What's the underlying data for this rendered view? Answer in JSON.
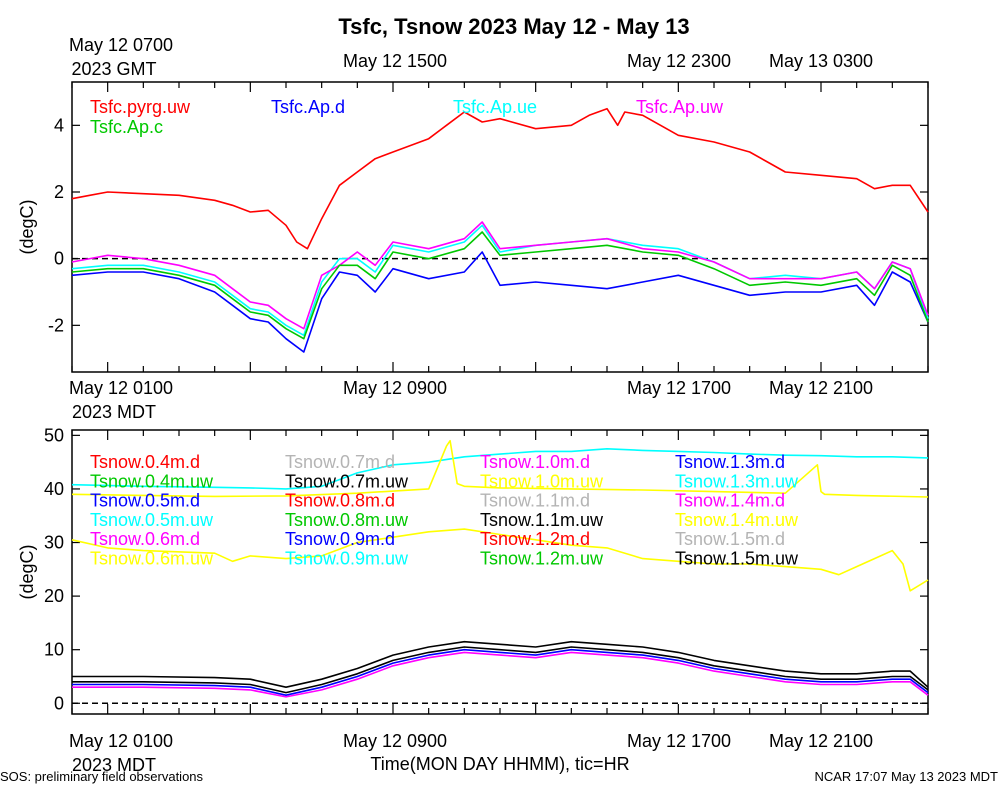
{
  "title": "Tsfc, Tsnow 2023 May 12 - May 13",
  "top_axis": {
    "labels": [
      "May 12 0700",
      "May 12 1500",
      "May 12 2300",
      "May 13 0300"
    ],
    "sublabel": "2023 GMT"
  },
  "bottom_axis": {
    "labels": [
      "May 12 0100",
      "May 12 0900",
      "May 12 1700",
      "May 12 2100"
    ],
    "sublabel": "2023 MDT"
  },
  "xlabel": "Time(MON DAY HHMM), tic=HR",
  "footer": {
    "left": "SOS: preliminary field observations",
    "right": "NCAR 17:07 May 13 2023 MDT"
  },
  "chart_data": [
    {
      "type": "line",
      "ylabel": "(degC)",
      "ylim": [
        -3.4,
        5.3
      ],
      "yticks": [
        -2,
        0,
        2,
        4
      ],
      "xlim": [
        0,
        24
      ],
      "x_unit": "hours after May 12 0000 MDT",
      "zero_line": true,
      "series": [
        {
          "name": "Tsfc.pyrg.uw",
          "color": "#ff0000",
          "x": [
            0,
            0.5,
            1,
            2,
            3,
            4,
            4.5,
            5,
            5.5,
            6,
            6.3,
            6.6,
            7,
            7.5,
            8,
            8.5,
            9,
            10,
            10.5,
            11,
            11.5,
            12,
            13,
            14,
            14.5,
            15,
            15.3,
            15.5,
            16,
            17,
            18,
            19,
            19.5,
            20,
            21,
            22,
            22.5,
            23,
            23.5,
            24
          ],
          "y": [
            1.8,
            1.9,
            2.0,
            1.95,
            1.9,
            1.75,
            1.6,
            1.4,
            1.45,
            1.0,
            0.5,
            0.3,
            1.2,
            2.2,
            2.6,
            3.0,
            3.2,
            3.6,
            4.0,
            4.4,
            4.1,
            4.2,
            3.9,
            4.0,
            4.3,
            4.5,
            4.0,
            4.4,
            4.3,
            3.7,
            3.5,
            3.2,
            2.9,
            2.6,
            2.5,
            2.4,
            2.1,
            2.2,
            2.2,
            1.4
          ]
        },
        {
          "name": "Tsfc.Ap.d",
          "color": "#0000ff",
          "x": [
            0,
            1,
            2,
            3,
            4,
            4.5,
            5,
            5.5,
            6,
            6.5,
            7,
            7.5,
            8,
            8.5,
            9,
            10,
            11,
            11.5,
            12,
            13,
            14,
            15,
            16,
            17,
            18,
            19,
            20,
            21,
            22,
            22.5,
            23,
            23.5,
            24
          ],
          "y": [
            -0.5,
            -0.4,
            -0.4,
            -0.6,
            -1.0,
            -1.4,
            -1.8,
            -1.9,
            -2.4,
            -2.8,
            -1.2,
            -0.4,
            -0.5,
            -1.0,
            -0.3,
            -0.6,
            -0.4,
            0.2,
            -0.8,
            -0.7,
            -0.8,
            -0.9,
            -0.7,
            -0.5,
            -0.8,
            -1.1,
            -1.0,
            -1.0,
            -0.8,
            -1.4,
            -0.4,
            -0.7,
            -1.9
          ]
        },
        {
          "name": "Tsfc.Ap.ue",
          "color": "#00ffff",
          "x": [
            0,
            1,
            2,
            3,
            4,
            4.5,
            5,
            5.5,
            6,
            6.5,
            7,
            7.5,
            8,
            8.5,
            9,
            10,
            11,
            11.5,
            12,
            13,
            14,
            15,
            16,
            17,
            18,
            19,
            20,
            21,
            22,
            22.5,
            23,
            23.5,
            24
          ],
          "y": [
            -0.3,
            -0.2,
            -0.2,
            -0.4,
            -0.7,
            -1.1,
            -1.5,
            -1.6,
            -2.0,
            -2.3,
            -0.7,
            0.0,
            0.0,
            -0.4,
            0.4,
            0.2,
            0.5,
            1.0,
            0.2,
            0.4,
            0.5,
            0.6,
            0.4,
            0.3,
            -0.1,
            -0.6,
            -0.5,
            -0.6,
            -0.4,
            -0.9,
            -0.1,
            -0.3,
            -1.8
          ]
        },
        {
          "name": "Tsfc.Ap.uw",
          "color": "#ff00ff",
          "x": [
            0,
            1,
            2,
            3,
            4,
            4.5,
            5,
            5.5,
            6,
            6.5,
            7,
            7.5,
            8,
            8.5,
            9,
            10,
            11,
            11.5,
            12,
            13,
            14,
            15,
            16,
            17,
            18,
            19,
            20,
            21,
            22,
            22.5,
            23,
            23.5,
            24
          ],
          "y": [
            -0.1,
            0.1,
            0.0,
            -0.2,
            -0.5,
            -0.9,
            -1.3,
            -1.4,
            -1.8,
            -2.1,
            -0.5,
            -0.2,
            0.2,
            -0.2,
            0.5,
            0.3,
            0.6,
            1.1,
            0.3,
            0.4,
            0.5,
            0.6,
            0.3,
            0.2,
            -0.1,
            -0.6,
            -0.6,
            -0.6,
            -0.4,
            -0.9,
            -0.1,
            -0.3,
            -1.7
          ]
        },
        {
          "name": "Tsfc.Ap.c",
          "color": "#00c800",
          "x": [
            0,
            1,
            2,
            3,
            4,
            4.5,
            5,
            5.5,
            6,
            6.5,
            7,
            7.5,
            8,
            8.5,
            9,
            10,
            11,
            11.5,
            12,
            13,
            14,
            15,
            16,
            17,
            18,
            19,
            20,
            21,
            22,
            22.5,
            23,
            23.5,
            24
          ],
          "y": [
            -0.4,
            -0.3,
            -0.3,
            -0.5,
            -0.8,
            -1.2,
            -1.6,
            -1.7,
            -2.1,
            -2.4,
            -0.9,
            -0.2,
            -0.2,
            -0.6,
            0.2,
            0.0,
            0.3,
            0.8,
            0.1,
            0.2,
            0.3,
            0.4,
            0.2,
            0.1,
            -0.3,
            -0.8,
            -0.7,
            -0.8,
            -0.6,
            -1.1,
            -0.2,
            -0.5,
            -1.9
          ]
        }
      ]
    },
    {
      "type": "line",
      "ylabel": "(degC)",
      "ylim": [
        -2,
        51
      ],
      "yticks": [
        0,
        10,
        20,
        30,
        40,
        50
      ],
      "xlim": [
        0,
        24
      ],
      "x_unit": "hours after May 12 0000 MDT",
      "zero_line": true,
      "series": [
        {
          "name": "Tsnow.0.4m.d",
          "color": "#ff0000"
        },
        {
          "name": "Tsnow.0.4m.uw",
          "color": "#00c800"
        },
        {
          "name": "Tsnow.0.5m.d",
          "color": "#0000ff"
        },
        {
          "name": "Tsnow.0.5m.uw",
          "color": "#00ffff"
        },
        {
          "name": "Tsnow.0.6m.d",
          "color": "#ff00ff"
        },
        {
          "name": "Tsnow.0.6m.uw",
          "color": "#ffff00",
          "x": [
            0,
            1,
            2,
            4,
            4.5,
            5,
            6,
            7,
            8,
            9,
            10,
            11,
            12,
            13,
            14,
            15,
            16,
            17,
            18,
            19,
            20,
            21,
            21.5,
            22,
            22.5,
            23,
            23.3,
            23.5,
            24
          ],
          "y": [
            30.5,
            29.0,
            28.5,
            28.0,
            26.5,
            27.5,
            27.0,
            27.5,
            30.0,
            31.0,
            32.0,
            32.5,
            31.5,
            30.5,
            29.5,
            29.0,
            27.0,
            26.5,
            26.0,
            26.0,
            25.5,
            25.0,
            24.0,
            25.5,
            27.0,
            28.5,
            26.0,
            21.0,
            23.0
          ]
        },
        {
          "name": "Tsnow.0.7m.d",
          "color": "#b4b4b4"
        },
        {
          "name": "Tsnow.0.7m.uw",
          "color": "#000000"
        },
        {
          "name": "Tsnow.0.8m.d",
          "color": "#ff0000"
        },
        {
          "name": "Tsnow.0.8m.uw",
          "color": "#00c800"
        },
        {
          "name": "Tsnow.0.9m.d",
          "color": "#0000ff"
        },
        {
          "name": "Tsnow.0.9m.uw",
          "color": "#00ffff",
          "x": [
            0,
            2,
            4,
            5,
            6,
            7,
            8,
            9,
            10,
            11,
            12,
            13,
            14,
            15,
            16,
            17,
            18,
            19,
            20,
            21,
            22,
            23,
            24
          ],
          "y": [
            40.8,
            40.5,
            40.3,
            40.2,
            40.0,
            40.5,
            43.0,
            44.5,
            45.0,
            46.0,
            46.5,
            47.0,
            47.0,
            47.5,
            47.2,
            47.0,
            46.8,
            46.5,
            46.3,
            46.2,
            46.0,
            46.0,
            45.8
          ]
        },
        {
          "name": "Tsnow.1.0m.d",
          "color": "#ff00ff"
        },
        {
          "name": "Tsnow.1.0m.uw",
          "color": "#ffff00",
          "x": [
            0,
            2,
            4,
            6,
            8,
            10,
            10.5,
            10.6,
            10.8,
            11,
            12,
            14,
            16,
            18,
            20,
            20.9,
            21,
            21.1,
            22,
            24
          ],
          "y": [
            39.0,
            38.8,
            38.6,
            38.7,
            39.2,
            40.0,
            48.0,
            49.0,
            41.0,
            40.5,
            40.2,
            40.0,
            39.8,
            39.5,
            39.2,
            44.5,
            39.5,
            39.0,
            38.8,
            38.5
          ]
        },
        {
          "name": "Tsnow.1.1m.d",
          "color": "#b4b4b4"
        },
        {
          "name": "Tsnow.1.1m.uw",
          "color": "#000000",
          "x": [
            0,
            2,
            4,
            5,
            6,
            7,
            8,
            9,
            10,
            11,
            12,
            13,
            14,
            15,
            16,
            17,
            18,
            19,
            20,
            21,
            22,
            23,
            23.5,
            24
          ],
          "y": [
            5.0,
            5.0,
            4.8,
            4.5,
            3.0,
            4.5,
            6.5,
            9.0,
            10.5,
            11.5,
            11.0,
            10.5,
            11.5,
            11.0,
            10.5,
            9.5,
            8.0,
            7.0,
            6.0,
            5.5,
            5.5,
            6.0,
            6.0,
            3.0
          ]
        },
        {
          "name": "Tsnow.1.2m.d",
          "color": "#ff0000"
        },
        {
          "name": "Tsnow.1.2m.uw",
          "color": "#00c800"
        },
        {
          "name": "Tsnow.1.3m.d",
          "color": "#0000ff",
          "x": [
            0,
            2,
            4,
            5,
            6,
            7,
            8,
            9,
            10,
            11,
            12,
            13,
            14,
            15,
            16,
            17,
            18,
            19,
            20,
            21,
            22,
            23,
            23.5,
            24
          ],
          "y": [
            3.5,
            3.5,
            3.3,
            3.0,
            1.5,
            3.0,
            5.0,
            7.5,
            9.0,
            10.0,
            9.5,
            9.0,
            10.0,
            9.5,
            9.0,
            8.0,
            6.5,
            5.5,
            4.5,
            4.0,
            4.0,
            4.5,
            4.5,
            2.0
          ]
        },
        {
          "name": "Tsnow.1.3m.uw",
          "color": "#00ffff"
        },
        {
          "name": "Tsnow.1.4m.d",
          "color": "#ff00ff",
          "x": [
            0,
            2,
            4,
            5,
            6,
            7,
            8,
            9,
            10,
            11,
            12,
            13,
            14,
            15,
            16,
            17,
            18,
            19,
            20,
            21,
            22,
            23,
            23.5,
            24
          ],
          "y": [
            3.0,
            3.0,
            2.8,
            2.5,
            1.2,
            2.5,
            4.5,
            7.0,
            8.5,
            9.5,
            9.0,
            8.5,
            9.5,
            9.0,
            8.5,
            7.5,
            6.0,
            5.0,
            4.0,
            3.5,
            3.5,
            4.0,
            4.0,
            1.5
          ]
        },
        {
          "name": "Tsnow.1.4m.uw",
          "color": "#ffff00"
        },
        {
          "name": "Tsnow.1.5m.d",
          "color": "#b4b4b4"
        },
        {
          "name": "Tsnow.1.5m.uw",
          "color": "#000000",
          "x": [
            0,
            2,
            4,
            5,
            6,
            7,
            8,
            9,
            10,
            11,
            12,
            13,
            14,
            15,
            16,
            17,
            18,
            19,
            20,
            21,
            22,
            23,
            23.5,
            24
          ],
          "y": [
            4.0,
            4.0,
            3.8,
            3.5,
            2.0,
            3.5,
            5.5,
            8.0,
            9.5,
            10.5,
            10.0,
            9.5,
            10.5,
            10.0,
            9.5,
            8.5,
            7.0,
            6.0,
            5.0,
            4.5,
            4.5,
            5.0,
            5.0,
            2.5
          ]
        }
      ]
    }
  ]
}
